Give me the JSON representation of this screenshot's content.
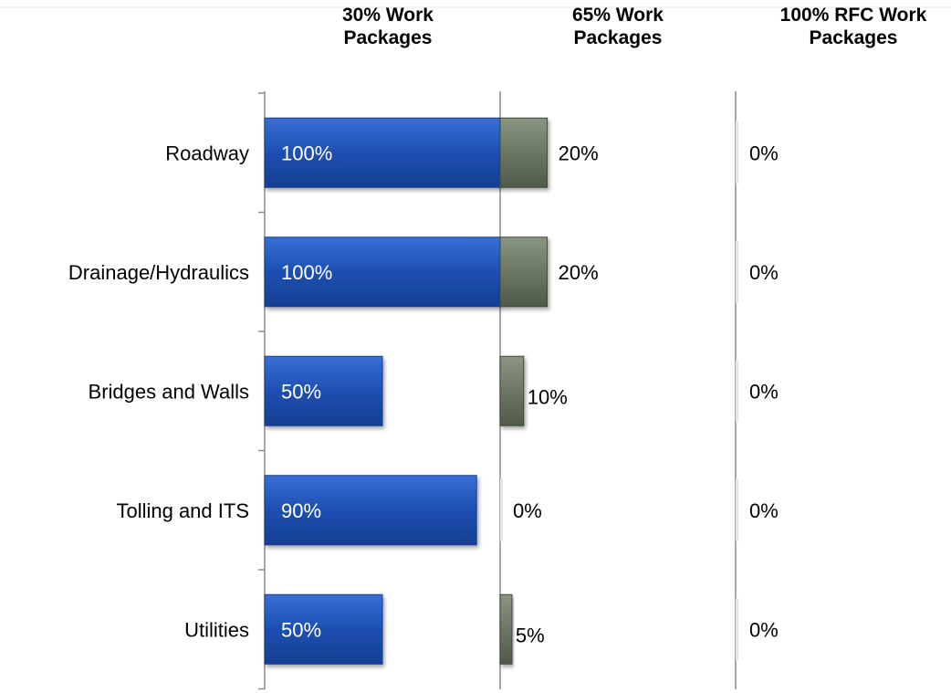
{
  "chart_data": {
    "type": "bar",
    "stacked": true,
    "columns": [
      {
        "name": "30% Work\nPackages",
        "max": 100
      },
      {
        "name": "65% Work\nPackages",
        "max": 100
      },
      {
        "name": "100% RFC Work\nPackages",
        "max": 100
      }
    ],
    "categories": [
      "Roadway",
      "Drainage/Hydraulics",
      "Bridges and Walls",
      "Tolling and ITS",
      "Utilities"
    ],
    "series": [
      {
        "name": "30% Work Packages",
        "values": [
          100,
          100,
          50,
          90,
          50
        ],
        "labels": [
          "100%",
          "100%",
          "50%",
          "90%",
          "50%"
        ],
        "color": "#1d4fb1"
      },
      {
        "name": "65% Work Packages",
        "values": [
          20,
          20,
          10,
          0,
          5
        ],
        "labels": [
          "20%",
          "20%",
          "10%",
          "0%",
          "5%"
        ],
        "color": "#6b7763"
      },
      {
        "name": "100% RFC Work Packages",
        "values": [
          0,
          0,
          0,
          0,
          0
        ],
        "labels": [
          "0%",
          "0%",
          "0%",
          "0%",
          "0%"
        ],
        "color": "#9aa5a0"
      }
    ],
    "grid": false,
    "legend": "none"
  }
}
